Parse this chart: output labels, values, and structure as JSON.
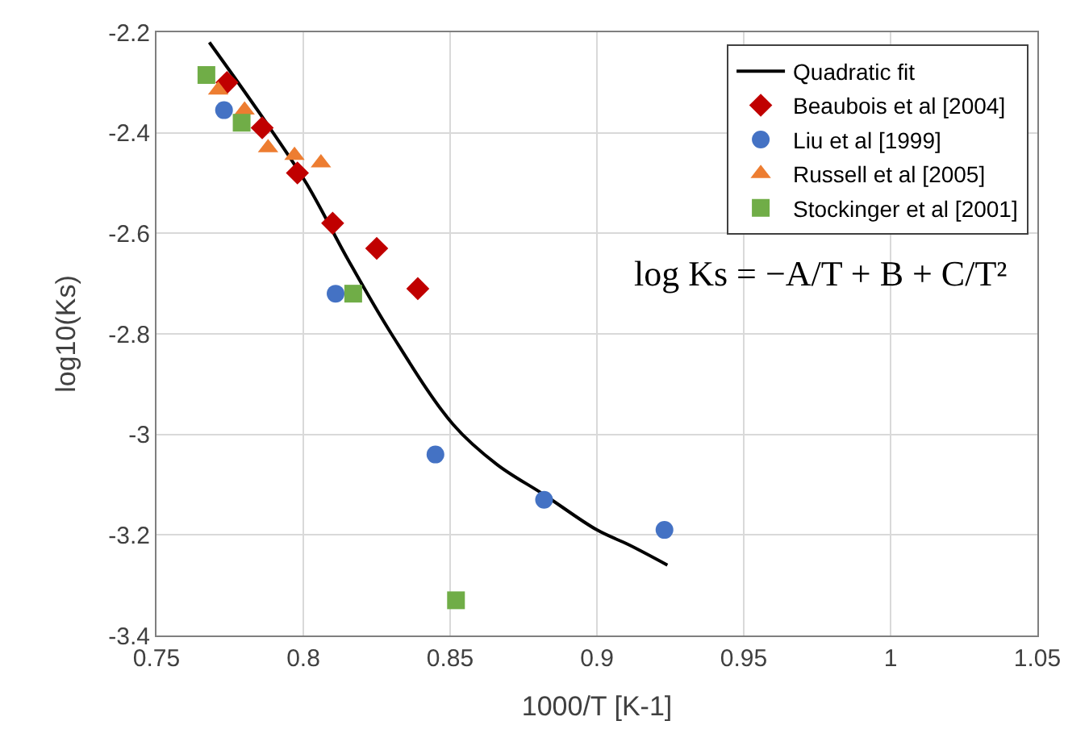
{
  "chart_data": {
    "type": "scatter",
    "xlabel": "1000/T [K-1]",
    "ylabel": "log10(Ks)",
    "xlim": [
      0.75,
      1.05
    ],
    "xticks": [
      0.75,
      0.8,
      0.85,
      0.9,
      0.95,
      1,
      1.05
    ],
    "ylim": [
      -3.4,
      -2.2
    ],
    "yticks": [
      -3.4,
      -3.2,
      -3,
      -2.8,
      -2.6,
      -2.4,
      -2.2
    ],
    "grid": true,
    "legend": "top right",
    "annotations": [
      "log Ks = −A/T + B + C/T²"
    ],
    "series": [
      {
        "name": "Quadratic fit",
        "type": "line",
        "color": "#000000",
        "marker": "none",
        "line_style": "solid",
        "x": [
          0.768,
          0.785,
          0.801,
          0.815,
          0.83,
          0.851,
          0.866,
          0.882,
          0.9,
          0.911,
          0.924
        ],
        "values": [
          -2.22,
          -2.36,
          -2.5,
          -2.65,
          -2.8,
          -2.98,
          -3.06,
          -3.12,
          -3.19,
          -3.22,
          -3.26
        ]
      },
      {
        "name": "Beaubois et al [2004]",
        "color": "#c00000",
        "marker": "diamond",
        "x": [
          0.774,
          0.786,
          0.798,
          0.81,
          0.825,
          0.839
        ],
        "values": [
          -2.3,
          -2.39,
          -2.48,
          -2.58,
          -2.63,
          -2.71
        ]
      },
      {
        "name": "Liu et al [1999]",
        "color": "#4472c4",
        "marker": "circle",
        "x": [
          0.773,
          0.811,
          0.845,
          0.882,
          0.923
        ],
        "values": [
          -2.355,
          -2.72,
          -3.04,
          -3.13,
          -3.19
        ]
      },
      {
        "name": "Russell et al [2005]",
        "color": "#ed7d31",
        "marker": "triangle",
        "x": [
          0.771,
          0.78,
          0.788,
          0.797,
          0.806
        ],
        "values": [
          -2.315,
          -2.355,
          -2.43,
          -2.445,
          -2.46
        ]
      },
      {
        "name": "Stockinger et al [2001]",
        "color": "#70ad47",
        "marker": "square",
        "x": [
          0.767,
          0.779,
          0.817,
          0.852
        ],
        "values": [
          -2.285,
          -2.38,
          -2.72,
          -3.33
        ]
      }
    ]
  }
}
